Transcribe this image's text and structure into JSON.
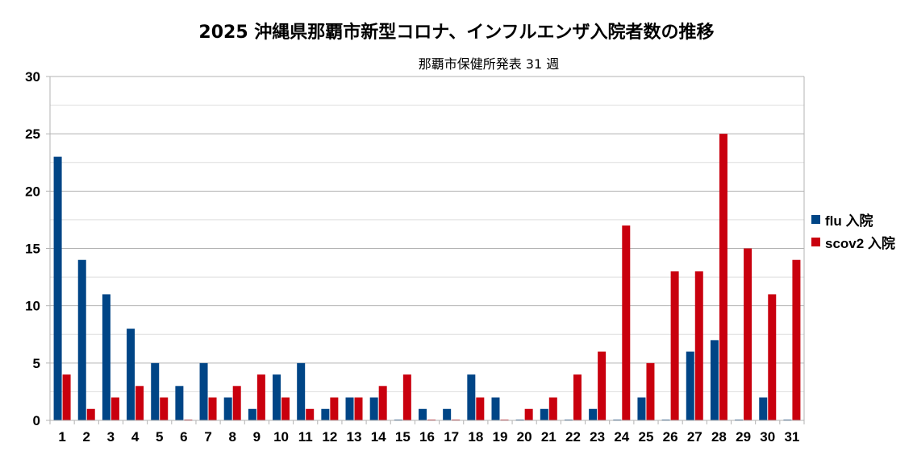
{
  "chart_data": {
    "type": "bar",
    "title": "2025 沖縄県那覇市新型コロナ、インフルエンザ入院者数の推移",
    "subtitle": "那覇市保健所発表 31 週",
    "xlabel": "",
    "ylabel": "",
    "ylim": [
      0,
      30
    ],
    "yticks": [
      "0",
      "5",
      "10",
      "15",
      "20",
      "25",
      "30"
    ],
    "grid": true,
    "legend_position": "right",
    "categories": [
      "1",
      "2",
      "3",
      "4",
      "5",
      "6",
      "7",
      "8",
      "9",
      "10",
      "11",
      "12",
      "13",
      "14",
      "15",
      "16",
      "17",
      "18",
      "19",
      "20",
      "21",
      "22",
      "23",
      "24",
      "25",
      "26",
      "27",
      "28",
      "29",
      "30",
      "31"
    ],
    "series": [
      {
        "name": "flu 入院",
        "color": "#004586",
        "values": [
          23,
          14,
          11,
          8,
          5,
          3,
          5,
          2,
          1,
          4,
          5,
          1,
          2,
          2,
          0,
          1,
          1,
          4,
          2,
          0,
          1,
          0,
          1,
          0,
          2,
          0,
          6,
          7,
          0,
          2,
          0
        ]
      },
      {
        "name": "scov2 入院",
        "color": "#c9000e",
        "values": [
          4,
          1,
          2,
          3,
          2,
          0,
          2,
          3,
          4,
          2,
          1,
          2,
          2,
          3,
          4,
          0,
          0,
          2,
          0,
          1,
          2,
          4,
          6,
          17,
          5,
          13,
          13,
          25,
          15,
          11,
          14
        ]
      }
    ]
  }
}
